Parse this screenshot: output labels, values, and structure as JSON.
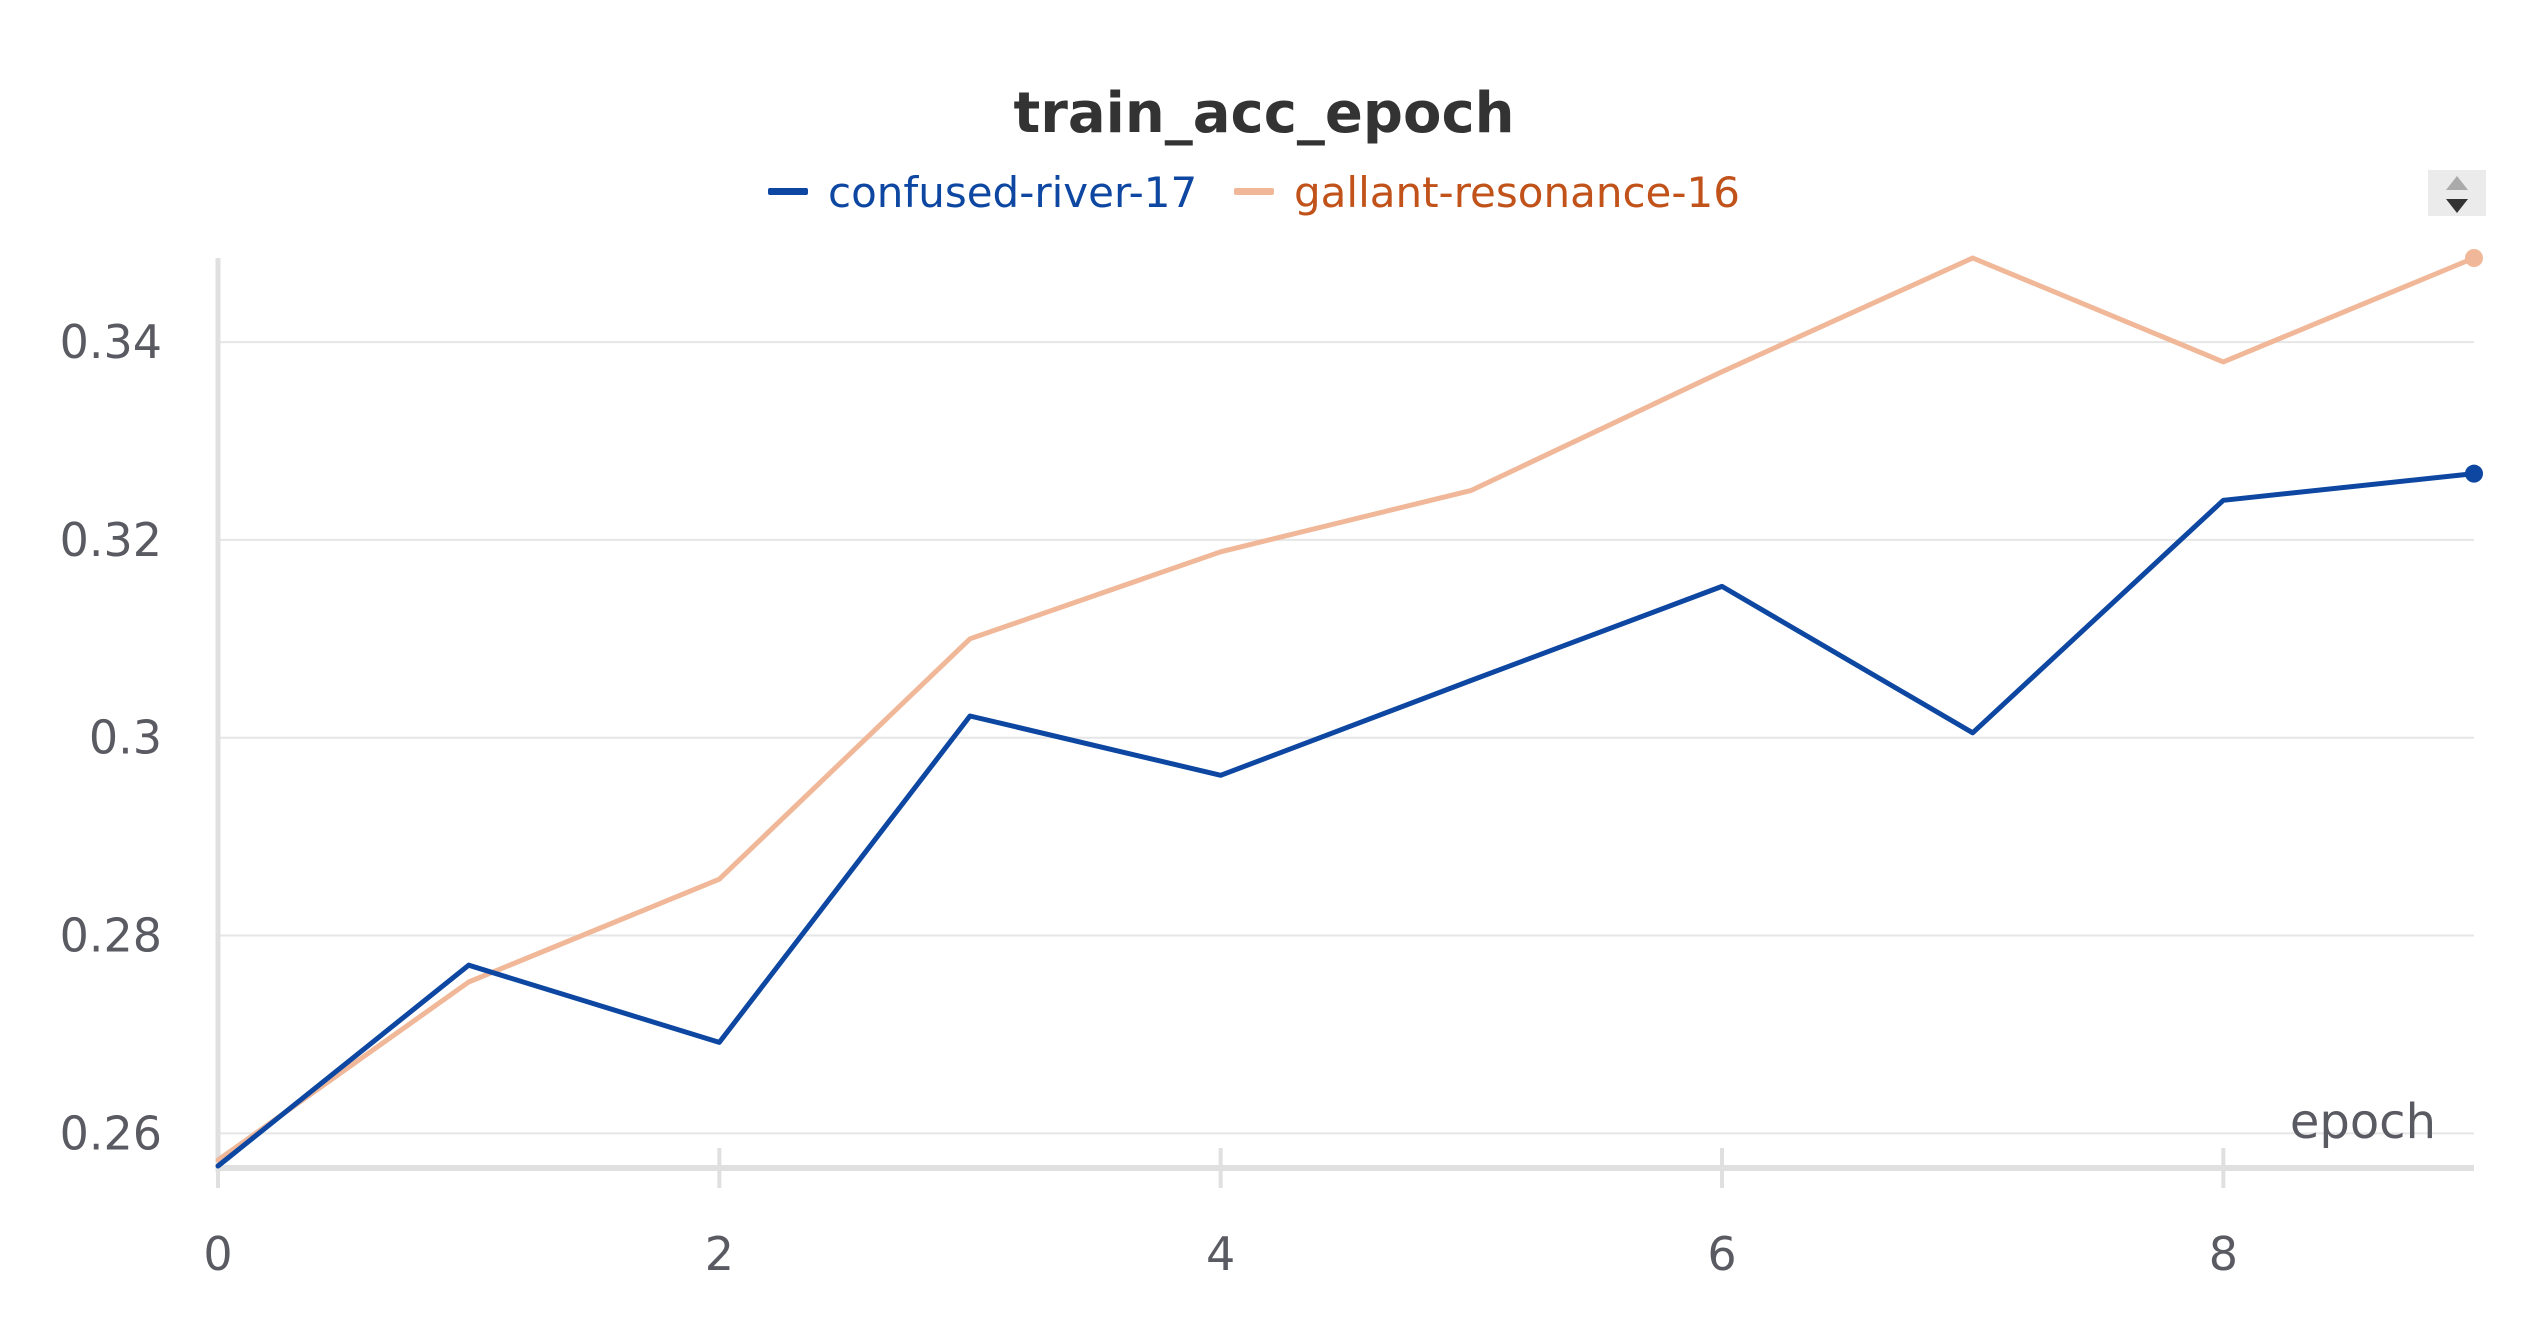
{
  "chart_data": {
    "type": "line",
    "title": "train_acc_epoch",
    "xlabel": "epoch",
    "ylabel": "",
    "x": [
      0,
      1,
      2,
      3,
      4,
      5,
      6,
      7,
      8,
      9
    ],
    "xlim": [
      0,
      9
    ],
    "ylim": [
      0.2565,
      0.3485
    ],
    "xticks": [
      0,
      2,
      4,
      6,
      8
    ],
    "yticks": [
      0.26,
      0.28,
      0.3,
      0.32,
      0.34
    ],
    "ytick_labels": [
      "0.26",
      "0.28",
      "0.3",
      "0.32",
      "0.34"
    ],
    "grid": true,
    "legend_position": "top-center",
    "series": [
      {
        "name": "confused-river-17",
        "color": "#0d47a1",
        "values": [
          0.2567,
          0.277,
          0.2692,
          0.3022,
          0.2962,
          0.3058,
          0.3153,
          0.3005,
          0.324,
          0.3267
        ]
      },
      {
        "name": "gallant-resonance-16",
        "color": "#f0b898",
        "text_color": "#c0521a",
        "values": [
          0.2573,
          0.2753,
          0.2857,
          0.31,
          0.3188,
          0.325,
          0.337,
          0.3485,
          0.338,
          0.3485
        ]
      }
    ]
  }
}
